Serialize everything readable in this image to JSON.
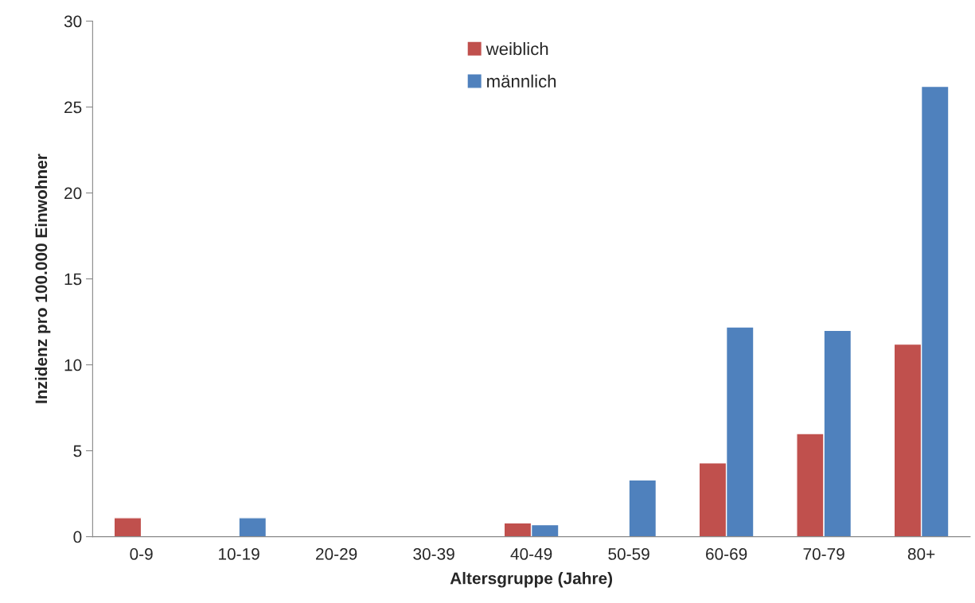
{
  "chart_data": {
    "type": "bar",
    "categories": [
      "0-9",
      "10-19",
      "20-29",
      "30-39",
      "40-49",
      "50-59",
      "60-69",
      "70-79",
      "80+"
    ],
    "series": [
      {
        "name": "weiblich",
        "color": "#c0504d",
        "values": [
          1.1,
          null,
          null,
          null,
          0.8,
          null,
          4.3,
          6.0,
          11.2
        ]
      },
      {
        "name": "männlich",
        "color": "#4f81bd",
        "values": [
          null,
          1.1,
          null,
          null,
          0.7,
          3.3,
          12.2,
          12.0,
          26.2
        ]
      }
    ],
    "xlabel": "Altersgruppe (Jahre)",
    "ylabel": "Inzidenz pro 100.000 Einwohner",
    "ylim": [
      0,
      30
    ],
    "yticks": [
      0,
      5,
      10,
      15,
      20,
      25,
      30
    ],
    "grid": false,
    "legend": "top"
  }
}
